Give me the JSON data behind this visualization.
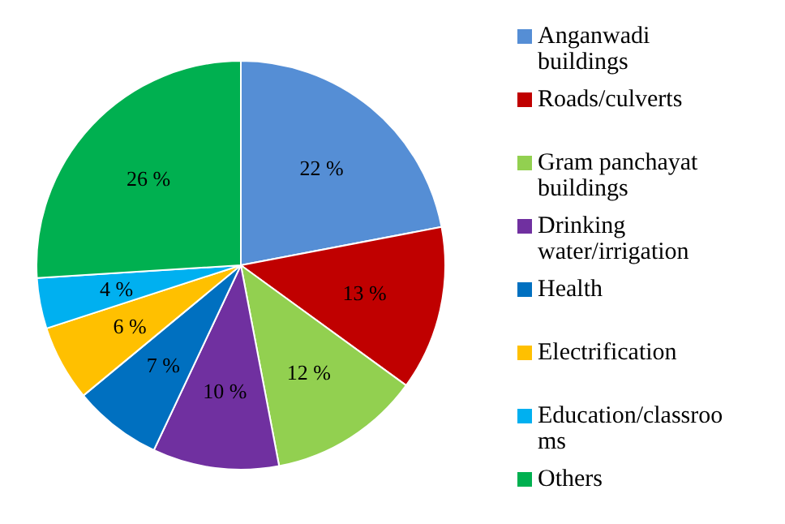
{
  "chart_data": {
    "type": "pie",
    "categories": [
      "Anganwadi buildings",
      "Roads/culverts",
      "Gram panchayat buildings",
      "Drinking water/irrigation",
      "Health",
      "Electrification",
      "Education/classrooms",
      "Others"
    ],
    "values": [
      22,
      13,
      12,
      10,
      7,
      6,
      4,
      26
    ],
    "colors": [
      "#558ed5",
      "#c00000",
      "#92d050",
      "#7030a0",
      "#0070c0",
      "#ffc000",
      "#00b0f0",
      "#00b050"
    ],
    "value_labels": [
      "22 %",
      "13 %",
      "12 %",
      "10 %",
      "7 %",
      "6 %",
      "4 %",
      "26 %"
    ],
    "legend": "right"
  }
}
